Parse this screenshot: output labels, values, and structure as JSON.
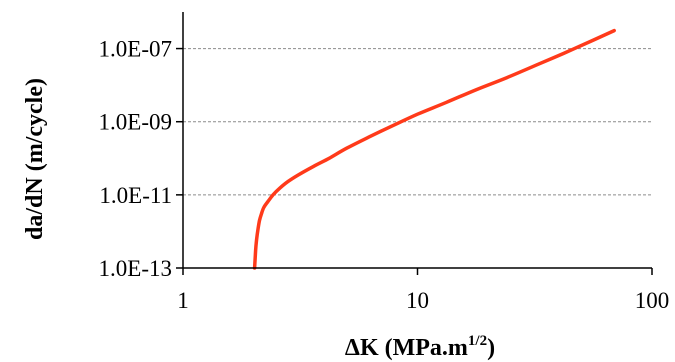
{
  "chart_data": {
    "type": "line",
    "title": "",
    "xlabel": "ΔK (MPa.m",
    "xlabel_sup": "1/2",
    "xlabel_end": ")",
    "ylabel": "da/dN (m/cycle)",
    "xscale": "log",
    "yscale": "log",
    "xlim": [
      1,
      100
    ],
    "ylim": [
      1e-13,
      1e-06
    ],
    "x_ticks": [
      1,
      10,
      100
    ],
    "x_tick_labels": [
      "1",
      "10",
      "100"
    ],
    "y_ticks": [
      1e-13,
      1e-11,
      1e-09,
      1e-07
    ],
    "y_tick_labels": [
      "1.0E-13",
      "1.0E-11",
      "1.0E-09",
      "1.0E-07"
    ],
    "grid": "horizontal dashed",
    "legend": "none",
    "series": [
      {
        "color": "#ff3a1a",
        "x": [
          2.02,
          2.04,
          2.06,
          2.09,
          2.12,
          2.16,
          2.21,
          2.3,
          2.42,
          2.58,
          2.8,
          3.1,
          3.6,
          4.2,
          5.0,
          6.2,
          7.9,
          10.0,
          13.3,
          17.8,
          24.0,
          32.0,
          42.0,
          55.0,
          69.0
        ],
        "y": [
          1e-13,
          3e-13,
          6e-13,
          1.2e-12,
          2e-12,
          3e-12,
          4.5e-12,
          6.5e-12,
          1e-11,
          1.5e-11,
          2.3e-11,
          3.5e-11,
          6e-11,
          1e-10,
          1.9e-10,
          3.8e-10,
          8e-10,
          1.6e-09,
          3.4e-09,
          7.5e-09,
          1.6e-08,
          3.5e-08,
          7.4e-08,
          1.6e-07,
          3.1e-07
        ]
      }
    ]
  }
}
